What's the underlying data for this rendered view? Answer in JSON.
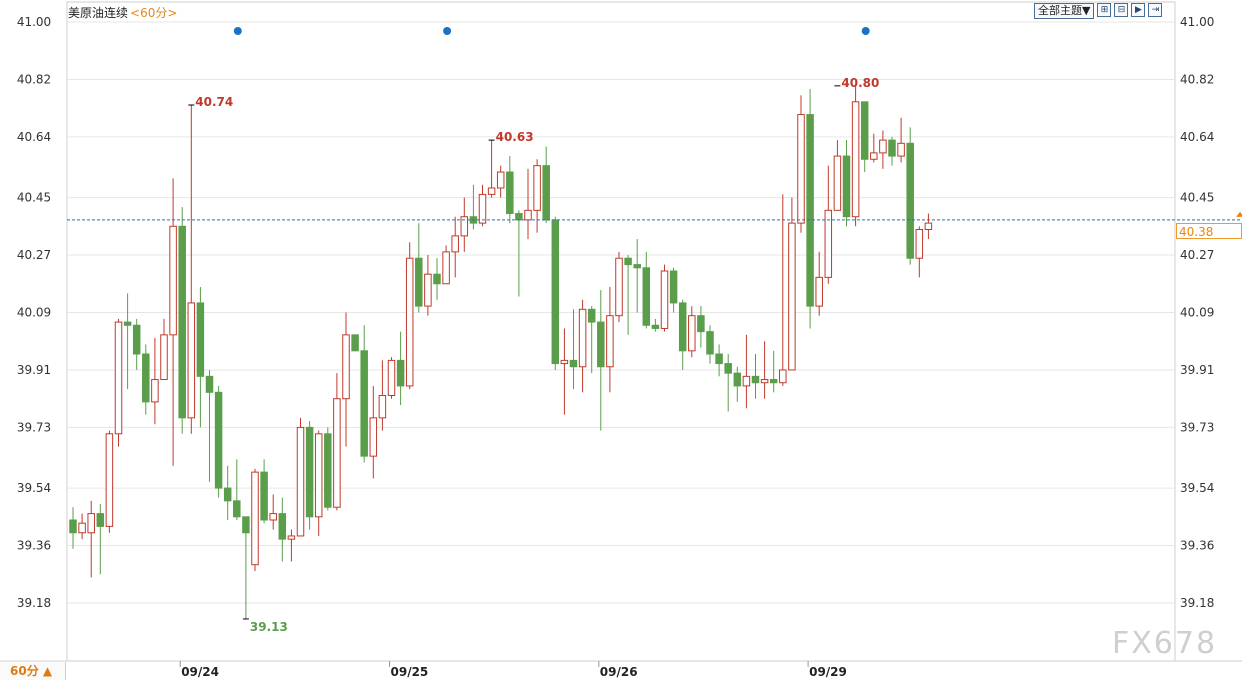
{
  "title": "美原油连续",
  "period_label": "<60分>",
  "theme_button": "全部主题▼",
  "toolbar_icons": [
    "expand-icon",
    "shrink-icon",
    "play-icon",
    "forward-icon"
  ],
  "bottom_tab": "60分 ▲",
  "watermark": "FX678",
  "current_price": "40.38",
  "colors": {
    "up": "#c0392b",
    "down": "#5a9e4c",
    "accent": "#f0830a",
    "grid": "#e6e6e6",
    "marker": "#1a73c2"
  },
  "chart_data": {
    "type": "candlestick",
    "y_ticks": [
      "41.00",
      "40.82",
      "40.64",
      "40.45",
      "40.27",
      "40.09",
      "39.91",
      "39.73",
      "39.54",
      "39.36",
      "39.18"
    ],
    "ylim": [
      39.03,
      41.07
    ],
    "x_labels": [
      {
        "label": "09/24",
        "index": 12
      },
      {
        "label": "09/25",
        "index": 35
      },
      {
        "label": "09/26",
        "index": 58
      },
      {
        "label": "09/29",
        "index": 81
      }
    ],
    "current_price": 40.38,
    "event_markers": [
      18,
      41,
      87
    ],
    "annotations": [
      {
        "label": "40.74",
        "index": 13,
        "value": 40.74,
        "type": "high"
      },
      {
        "label": "40.63",
        "index": 46,
        "value": 40.63,
        "type": "high"
      },
      {
        "label": "40.80",
        "index": 84,
        "value": 40.8,
        "type": "high"
      },
      {
        "label": "39.13",
        "index": 19,
        "value": 39.13,
        "type": "low"
      }
    ],
    "candles": [
      [
        39.44,
        39.4,
        39.48,
        39.35
      ],
      [
        39.4,
        39.43,
        39.46,
        39.38
      ],
      [
        39.4,
        39.46,
        39.5,
        39.26
      ],
      [
        39.46,
        39.42,
        39.49,
        39.27
      ],
      [
        39.42,
        39.71,
        39.72,
        39.4
      ],
      [
        39.71,
        40.06,
        40.07,
        39.67
      ],
      [
        40.06,
        40.05,
        40.15,
        39.85
      ],
      [
        40.05,
        39.96,
        40.07,
        39.91
      ],
      [
        39.96,
        39.81,
        39.99,
        39.77
      ],
      [
        39.81,
        39.88,
        40.01,
        39.74
      ],
      [
        39.88,
        40.02,
        40.07,
        39.88
      ],
      [
        40.02,
        40.36,
        40.51,
        39.61
      ],
      [
        40.36,
        39.76,
        40.42,
        39.71
      ],
      [
        39.76,
        40.12,
        40.74,
        39.71
      ],
      [
        40.12,
        39.89,
        40.17,
        39.73
      ],
      [
        39.89,
        39.84,
        39.91,
        39.56
      ],
      [
        39.84,
        39.54,
        39.86,
        39.51
      ],
      [
        39.54,
        39.5,
        39.61,
        39.44
      ],
      [
        39.5,
        39.45,
        39.63,
        39.44
      ],
      [
        39.45,
        39.4,
        39.44,
        39.13
      ],
      [
        39.3,
        39.59,
        39.6,
        39.28
      ],
      [
        39.59,
        39.44,
        39.63,
        39.43
      ],
      [
        39.44,
        39.46,
        39.52,
        39.41
      ],
      [
        39.46,
        39.38,
        39.51,
        39.31
      ],
      [
        39.38,
        39.39,
        39.41,
        39.31
      ],
      [
        39.39,
        39.73,
        39.76,
        39.39
      ],
      [
        39.73,
        39.45,
        39.75,
        39.41
      ],
      [
        39.45,
        39.71,
        39.72,
        39.39
      ],
      [
        39.71,
        39.48,
        39.73,
        39.47
      ],
      [
        39.48,
        39.82,
        39.9,
        39.47
      ],
      [
        39.82,
        40.02,
        40.09,
        39.67
      ],
      [
        40.02,
        39.97,
        40.02,
        39.97
      ],
      [
        39.97,
        39.64,
        40.05,
        39.62
      ],
      [
        39.64,
        39.76,
        39.86,
        39.57
      ],
      [
        39.76,
        39.83,
        39.94,
        39.72
      ],
      [
        39.83,
        39.94,
        39.95,
        39.82
      ],
      [
        39.94,
        39.86,
        40.03,
        39.8
      ],
      [
        39.86,
        40.26,
        40.31,
        39.85
      ],
      [
        40.26,
        40.11,
        40.37,
        40.09
      ],
      [
        40.11,
        40.21,
        40.27,
        40.08
      ],
      [
        40.21,
        40.18,
        40.26,
        40.13
      ],
      [
        40.18,
        40.28,
        40.3,
        40.19
      ],
      [
        40.28,
        40.33,
        40.39,
        40.2
      ],
      [
        40.33,
        40.39,
        40.45,
        40.28
      ],
      [
        40.39,
        40.37,
        40.49,
        40.35
      ],
      [
        40.37,
        40.46,
        40.49,
        40.36
      ],
      [
        40.46,
        40.48,
        40.63,
        40.45
      ],
      [
        40.48,
        40.53,
        40.55,
        40.45
      ],
      [
        40.53,
        40.4,
        40.58,
        40.37
      ],
      [
        40.4,
        40.38,
        40.41,
        40.14
      ],
      [
        40.38,
        40.41,
        40.54,
        40.32
      ],
      [
        40.41,
        40.55,
        40.57,
        40.34
      ],
      [
        40.55,
        40.38,
        40.61,
        40.37
      ],
      [
        40.38,
        39.93,
        40.39,
        39.91
      ],
      [
        39.93,
        39.94,
        40.04,
        39.77
      ],
      [
        39.94,
        39.92,
        40.1,
        39.85
      ],
      [
        39.92,
        40.1,
        40.13,
        39.84
      ],
      [
        40.1,
        40.06,
        40.11,
        39.9
      ],
      [
        40.06,
        39.92,
        40.16,
        39.72
      ],
      [
        39.92,
        40.08,
        40.17,
        39.84
      ],
      [
        40.08,
        40.26,
        40.28,
        40.06
      ],
      [
        40.26,
        40.24,
        40.27,
        40.02
      ],
      [
        40.24,
        40.23,
        40.32,
        40.09
      ],
      [
        40.23,
        40.05,
        40.28,
        40.04
      ],
      [
        40.05,
        40.04,
        40.07,
        40.03
      ],
      [
        40.04,
        40.22,
        40.24,
        40.03
      ],
      [
        40.22,
        40.12,
        40.23,
        40.09
      ],
      [
        40.12,
        39.97,
        40.13,
        39.91
      ],
      [
        39.97,
        40.08,
        40.11,
        39.95
      ],
      [
        40.08,
        40.03,
        40.11,
        39.98
      ],
      [
        40.03,
        39.96,
        40.05,
        39.93
      ],
      [
        39.96,
        39.93,
        39.99,
        39.89
      ],
      [
        39.93,
        39.9,
        39.96,
        39.78
      ],
      [
        39.9,
        39.86,
        39.92,
        39.81
      ],
      [
        39.86,
        39.89,
        40.02,
        39.79
      ],
      [
        39.89,
        39.87,
        39.96,
        39.82
      ],
      [
        39.87,
        39.88,
        40.0,
        39.82
      ],
      [
        39.88,
        39.87,
        39.97,
        39.84
      ],
      [
        39.87,
        39.91,
        40.46,
        39.86
      ],
      [
        39.91,
        40.37,
        40.45,
        40.26
      ],
      [
        40.37,
        40.71,
        40.77,
        40.34
      ],
      [
        40.71,
        40.11,
        40.79,
        40.04
      ],
      [
        40.11,
        40.2,
        40.28,
        40.08
      ],
      [
        40.2,
        40.41,
        40.55,
        40.18
      ],
      [
        40.41,
        40.58,
        40.63,
        40.51
      ],
      [
        40.58,
        40.39,
        40.63,
        40.36
      ],
      [
        40.39,
        40.75,
        40.8,
        40.36
      ],
      [
        40.75,
        40.57,
        40.75,
        40.53
      ],
      [
        40.57,
        40.59,
        40.65,
        40.56
      ],
      [
        40.59,
        40.63,
        40.66,
        40.54
      ],
      [
        40.63,
        40.58,
        40.64,
        40.55
      ],
      [
        40.58,
        40.62,
        40.7,
        40.56
      ],
      [
        40.62,
        40.26,
        40.67,
        40.24
      ],
      [
        40.26,
        40.35,
        40.36,
        40.2
      ],
      [
        40.35,
        40.37,
        40.4,
        40.32
      ]
    ]
  }
}
